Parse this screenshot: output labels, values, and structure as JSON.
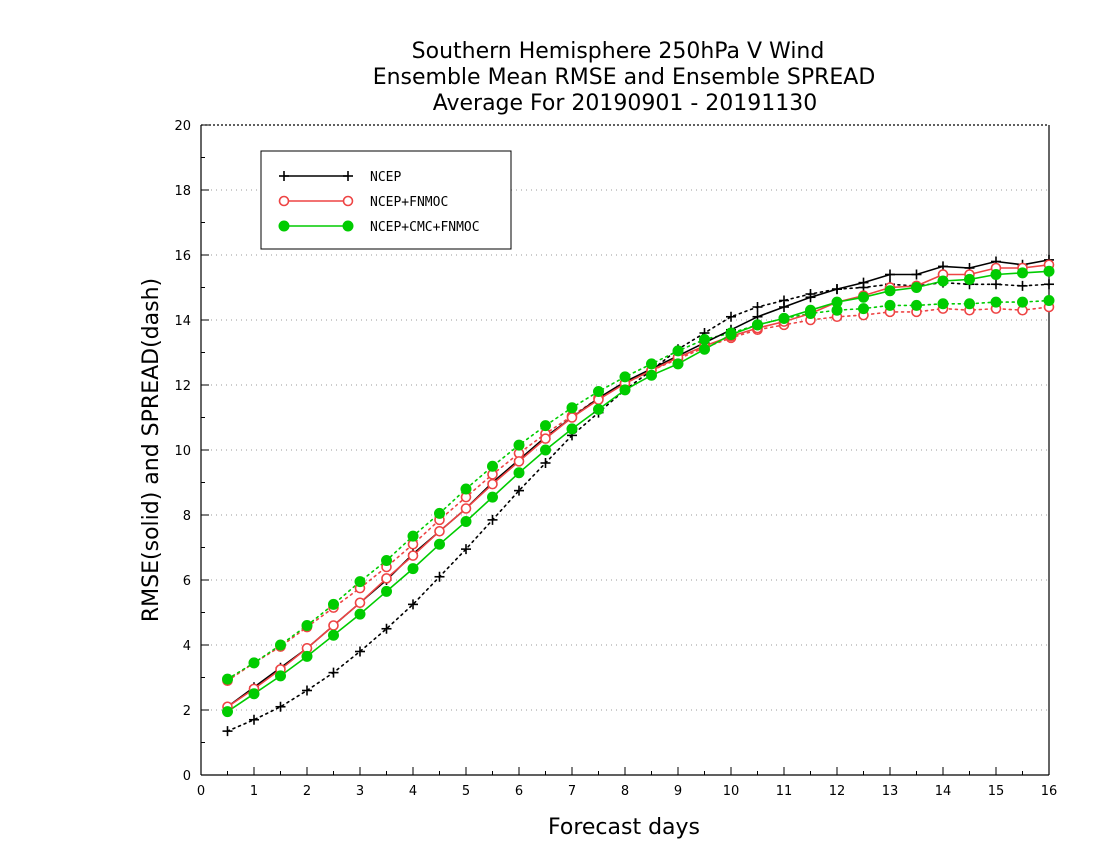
{
  "chart_data": {
    "type": "line",
    "title": [
      "Southern Hemisphere 250hPa V Wind",
      "Ensemble Mean RMSE and Ensemble SPREAD",
      "Average For 20190901 - 20191130"
    ],
    "xlabel": "Forecast days",
    "ylabel": "RMSE(solid) and SPREAD(dash)",
    "xlim": [
      0,
      16
    ],
    "ylim": [
      0,
      20
    ],
    "xticks": [
      0,
      1,
      2,
      3,
      4,
      5,
      6,
      7,
      8,
      9,
      10,
      11,
      12,
      13,
      14,
      15,
      16
    ],
    "yticks": [
      0,
      2,
      4,
      6,
      8,
      10,
      12,
      14,
      16,
      18,
      20
    ],
    "grid": "horizontal dotted",
    "legend_position": "top-left",
    "x": [
      0.5,
      1,
      1.5,
      2,
      2.5,
      3,
      3.5,
      4,
      4.5,
      5,
      5.5,
      6,
      6.5,
      7,
      7.5,
      8,
      8.5,
      9,
      9.5,
      10,
      10.5,
      11,
      11.5,
      12,
      12.5,
      13,
      13.5,
      14,
      14.5,
      15,
      15.5,
      16
    ],
    "series": [
      {
        "name": "NCEP",
        "color": "#000000",
        "marker": "plus",
        "rmse": [
          2.1,
          2.7,
          3.3,
          3.9,
          4.6,
          5.3,
          6.0,
          6.8,
          7.5,
          8.2,
          9.0,
          9.7,
          10.4,
          11.0,
          11.6,
          12.1,
          12.5,
          12.9,
          13.3,
          13.7,
          14.1,
          14.4,
          14.7,
          14.95,
          15.15,
          15.4,
          15.4,
          15.65,
          15.6,
          15.8,
          15.7,
          15.85
        ],
        "spread": [
          1.35,
          1.7,
          2.1,
          2.6,
          3.15,
          3.8,
          4.5,
          5.25,
          6.1,
          6.95,
          7.85,
          8.75,
          9.6,
          10.45,
          11.15,
          11.85,
          12.45,
          13.1,
          13.6,
          14.1,
          14.4,
          14.6,
          14.8,
          14.95,
          15.0,
          15.1,
          15.05,
          15.15,
          15.1,
          15.1,
          15.05,
          15.1
        ]
      },
      {
        "name": "NCEP+FNMOC",
        "color": "#ee4444",
        "marker": "open-circle",
        "rmse": [
          2.1,
          2.65,
          3.25,
          3.9,
          4.6,
          5.3,
          6.05,
          6.75,
          7.5,
          8.2,
          8.95,
          9.65,
          10.35,
          11.0,
          11.55,
          12.05,
          12.45,
          12.85,
          13.2,
          13.5,
          13.75,
          13.95,
          14.2,
          14.55,
          14.75,
          15.0,
          15.05,
          15.4,
          15.4,
          15.6,
          15.6,
          15.7
        ],
        "spread": [
          2.9,
          3.45,
          3.95,
          4.55,
          5.15,
          5.75,
          6.4,
          7.1,
          7.85,
          8.55,
          9.25,
          9.9,
          10.5,
          11.05,
          11.6,
          12.05,
          12.45,
          12.8,
          13.15,
          13.45,
          13.7,
          13.85,
          14.0,
          14.1,
          14.15,
          14.25,
          14.25,
          14.35,
          14.3,
          14.35,
          14.3,
          14.4
        ]
      },
      {
        "name": "NCEP+CMC+FNMOC",
        "color": "#00cc00",
        "marker": "filled-circle",
        "rmse": [
          1.95,
          2.5,
          3.05,
          3.65,
          4.3,
          4.95,
          5.65,
          6.35,
          7.1,
          7.8,
          8.55,
          9.3,
          10.0,
          10.65,
          11.25,
          11.85,
          12.3,
          12.65,
          13.1,
          13.55,
          13.85,
          14.05,
          14.3,
          14.55,
          14.7,
          14.9,
          15.0,
          15.2,
          15.25,
          15.4,
          15.45,
          15.5
        ],
        "spread": [
          2.95,
          3.45,
          4.0,
          4.6,
          5.25,
          5.95,
          6.6,
          7.35,
          8.05,
          8.8,
          9.5,
          10.15,
          10.75,
          11.3,
          11.8,
          12.25,
          12.65,
          13.05,
          13.4,
          13.6,
          13.85,
          14.05,
          14.2,
          14.3,
          14.35,
          14.45,
          14.45,
          14.5,
          14.5,
          14.55,
          14.55,
          14.6
        ]
      }
    ]
  }
}
